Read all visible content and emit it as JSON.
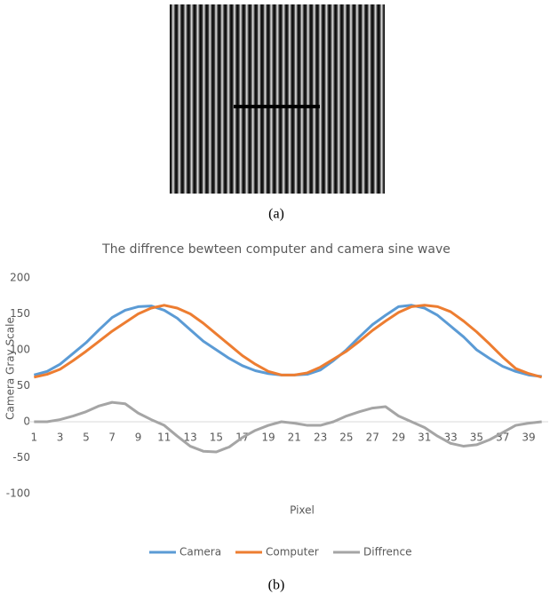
{
  "figure": {
    "caption_a": "(a)",
    "caption_b": "(b)"
  },
  "chart_data": {
    "type": "line",
    "title": "The diffrence bewteen computer and camera sine wave",
    "y_label": "Camera Gray Scale",
    "x_label": "Pixel",
    "categories": [
      "1",
      null,
      "3",
      null,
      "5",
      null,
      "7",
      null,
      "9",
      null,
      "11",
      null,
      "13",
      null,
      "15",
      null,
      "17",
      null,
      "19",
      null,
      "21",
      null,
      "23",
      null,
      "25",
      null,
      "27",
      null,
      "29",
      null,
      "31",
      null,
      "33",
      null,
      "35",
      null,
      "37",
      null,
      "39",
      null
    ],
    "series": [
      {
        "name": "Camera",
        "color": "#5b9bd5",
        "values": [
          65,
          70,
          80,
          95,
          110,
          128,
          145,
          155,
          160,
          161,
          155,
          144,
          128,
          112,
          100,
          88,
          78,
          71,
          67,
          65,
          65,
          66,
          72,
          85,
          100,
          118,
          135,
          148,
          160,
          162,
          158,
          148,
          133,
          118,
          100,
          88,
          77,
          70,
          65,
          63
        ]
      },
      {
        "name": "Computer",
        "color": "#ed7d31",
        "values": [
          62,
          66,
          73,
          85,
          98,
          112,
          126,
          138,
          150,
          158,
          162,
          158,
          150,
          137,
          122,
          107,
          92,
          80,
          70,
          65,
          65,
          68,
          76,
          87,
          98,
          112,
          127,
          140,
          152,
          160,
          162,
          160,
          153,
          140,
          125,
          108,
          90,
          74,
          67,
          62
        ]
      },
      {
        "name": "Diffrence",
        "color": "#a5a5a5",
        "values": [
          0,
          0,
          3,
          8,
          14,
          22,
          27,
          25,
          12,
          3,
          -5,
          -20,
          -34,
          -41,
          -42,
          -35,
          -22,
          -12,
          -5,
          0,
          -2,
          -5,
          -5,
          0,
          8,
          14,
          19,
          21,
          8,
          0,
          -8,
          -20,
          -30,
          -34,
          -32,
          -25,
          -15,
          -5,
          -2,
          0
        ]
      }
    ],
    "ylim": [
      -100,
      200
    ],
    "yticks": [
      -100,
      -50,
      0,
      50,
      100,
      150,
      200
    ],
    "grid": false,
    "legend": "bottom"
  }
}
